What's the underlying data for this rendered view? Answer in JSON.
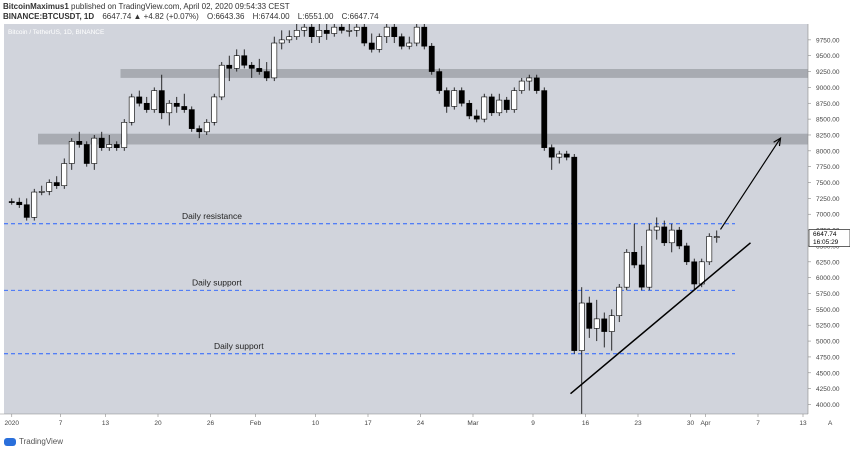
{
  "header": {
    "author": "BitcoinMaximus1",
    "published": "published on TradingView.com, April 02, 2020 09:54:33 CEST",
    "symbol": "BINANCE:BTCUSDT, 1D",
    "change": "6647.74  ▲ +4.82 (+0.07%)",
    "o_label": "O:",
    "o_val": "6643.36",
    "h_label": "H:",
    "h_val": "6744.00",
    "l_label": "L:",
    "l_val": "6551.00",
    "c_label": "C:",
    "c_val": "6647.74"
  },
  "chart_title": "Bitcoin / TetherUS, 1D, BINANCE",
  "footer": {
    "brand": "TradingView"
  },
  "colors": {
    "bg": "#d1d4dc",
    "bull": "#ffffff",
    "bear": "#000000",
    "zone": "#a3a6ad",
    "dash": "#2962ff",
    "price_box": "#ffffff"
  },
  "chart_data": {
    "type": "candlestick",
    "price_axis": {
      "ticks": [
        4000,
        4250,
        4500,
        4750,
        5000,
        5250,
        5500,
        5750,
        6000,
        6250,
        6500,
        6750,
        7000,
        7250,
        7500,
        7750,
        8000,
        8250,
        8500,
        8750,
        9000,
        9250,
        9500,
        9750
      ],
      "tick_labels": [
        "4000.00",
        "4250.00",
        "4500.00",
        "4750.00",
        "5000.00",
        "5250.00",
        "5500.00",
        "5750.00",
        "6000.00",
        "6250.00",
        "6500.00",
        "6750.00",
        "7000.00",
        "7250.00",
        "7500.00",
        "7750.00",
        "8000.00",
        "8250.00",
        "8500.00",
        "8750.00",
        "9000.00",
        "9250.00",
        "9500.00",
        "9750.00"
      ],
      "range": [
        3850,
        10000
      ]
    },
    "time_axis": {
      "labels": [
        "2020",
        "7",
        "13",
        "20",
        "26",
        "Feb",
        "10",
        "17",
        "24",
        "Mar",
        "9",
        "16",
        "23",
        "30",
        "Apr",
        "7",
        "13"
      ],
      "label_index": [
        0,
        6.5,
        12.5,
        19.5,
        26.5,
        32.5,
        40.5,
        47.5,
        54.5,
        61.5,
        69.5,
        76.5,
        83.5,
        90.5,
        92.5,
        99.5,
        105.5
      ],
      "scale_label": "A"
    },
    "current_price": {
      "value": 6647.74,
      "label": "6647.74",
      "countdown": "16:05:29"
    },
    "candles": [
      [
        7200,
        7250,
        7150,
        7190
      ],
      [
        7190,
        7260,
        7100,
        7150
      ],
      [
        7150,
        7250,
        6900,
        6950
      ],
      [
        6950,
        7400,
        6900,
        7350
      ],
      [
        7350,
        7450,
        7300,
        7360
      ],
      [
        7360,
        7550,
        7300,
        7500
      ],
      [
        7500,
        7600,
        7400,
        7450
      ],
      [
        7450,
        7880,
        7400,
        7800
      ],
      [
        7800,
        8200,
        7700,
        8150
      ],
      [
        8150,
        8300,
        8050,
        8100
      ],
      [
        8100,
        8150,
        7750,
        7800
      ],
      [
        7800,
        8250,
        7700,
        8200
      ],
      [
        8200,
        8300,
        8000,
        8050
      ],
      [
        8050,
        8250,
        8000,
        8100
      ],
      [
        8100,
        8150,
        8000,
        8050
      ],
      [
        8050,
        8500,
        8000,
        8450
      ],
      [
        8450,
        8900,
        8400,
        8850
      ],
      [
        8850,
        8950,
        8700,
        8750
      ],
      [
        8750,
        8850,
        8600,
        8650
      ],
      [
        8650,
        9000,
        8600,
        8950
      ],
      [
        8950,
        9200,
        8500,
        8600
      ],
      [
        8600,
        8800,
        8400,
        8750
      ],
      [
        8750,
        8850,
        8600,
        8700
      ],
      [
        8700,
        8900,
        8600,
        8650
      ],
      [
        8650,
        8700,
        8300,
        8350
      ],
      [
        8350,
        8400,
        8200,
        8300
      ],
      [
        8300,
        8500,
        8250,
        8450
      ],
      [
        8450,
        8900,
        8400,
        8850
      ],
      [
        8850,
        9400,
        8800,
        9350
      ],
      [
        9350,
        9500,
        9100,
        9300
      ],
      [
        9300,
        9600,
        9250,
        9500
      ],
      [
        9500,
        9600,
        9300,
        9350
      ],
      [
        9350,
        9400,
        9150,
        9300
      ],
      [
        9300,
        9450,
        9200,
        9250
      ],
      [
        9250,
        9400,
        9100,
        9150
      ],
      [
        9150,
        9800,
        9100,
        9700
      ],
      [
        9700,
        9900,
        9600,
        9750
      ],
      [
        9750,
        9900,
        9700,
        9800
      ],
      [
        9800,
        10000,
        9750,
        9900
      ],
      [
        9900,
        10000,
        9800,
        9950
      ],
      [
        9950,
        10000,
        9700,
        9800
      ],
      [
        9800,
        10000,
        9700,
        9900
      ],
      [
        9900,
        10000,
        9750,
        9850
      ],
      [
        9850,
        10000,
        9800,
        9950
      ],
      [
        9950,
        10000,
        9850,
        9900
      ],
      [
        9900,
        10000,
        9800,
        9900
      ],
      [
        9900,
        10000,
        9800,
        9950
      ],
      [
        9950,
        10000,
        9650,
        9700
      ],
      [
        9700,
        9850,
        9550,
        9600
      ],
      [
        9600,
        9850,
        9550,
        9800
      ],
      [
        9800,
        10000,
        9700,
        9950
      ],
      [
        9950,
        10000,
        9700,
        9800
      ],
      [
        9800,
        9850,
        9600,
        9650
      ],
      [
        9650,
        9800,
        9600,
        9700
      ],
      [
        9700,
        10000,
        9650,
        9950
      ],
      [
        9950,
        10000,
        9600,
        9650
      ],
      [
        9650,
        9700,
        9200,
        9250
      ],
      [
        9250,
        9300,
        8900,
        8950
      ],
      [
        8950,
        9000,
        8600,
        8700
      ],
      [
        8700,
        9000,
        8650,
        8950
      ],
      [
        8950,
        9000,
        8700,
        8750
      ],
      [
        8750,
        8800,
        8500,
        8550
      ],
      [
        8550,
        8650,
        8450,
        8500
      ],
      [
        8500,
        8900,
        8450,
        8850
      ],
      [
        8850,
        8900,
        8550,
        8600
      ],
      [
        8600,
        8900,
        8550,
        8800
      ],
      [
        8800,
        8850,
        8600,
        8650
      ],
      [
        8650,
        9000,
        8600,
        8950
      ],
      [
        8950,
        9150,
        8900,
        9100
      ],
      [
        9100,
        9200,
        8950,
        9150
      ],
      [
        9150,
        9200,
        8900,
        8950
      ],
      [
        8950,
        9000,
        8000,
        8050
      ],
      [
        8050,
        8100,
        7700,
        7900
      ],
      [
        7900,
        8000,
        7800,
        7950
      ],
      [
        7950,
        8000,
        7850,
        7900
      ],
      [
        7900,
        7950,
        4800,
        4850
      ],
      [
        4850,
        5850,
        3850,
        5600
      ],
      [
        5600,
        5700,
        5050,
        5200
      ],
      [
        5200,
        5650,
        5000,
        5350
      ],
      [
        5350,
        5450,
        4900,
        5150
      ],
      [
        5150,
        5500,
        4850,
        5400
      ],
      [
        5400,
        5900,
        5300,
        5850
      ],
      [
        5850,
        6450,
        5800,
        6400
      ],
      [
        6400,
        6850,
        6150,
        6200
      ],
      [
        6200,
        6500,
        5800,
        5850
      ],
      [
        5850,
        6850,
        5800,
        6750
      ],
      [
        6750,
        6950,
        6600,
        6800
      ],
      [
        6800,
        6900,
        6500,
        6550
      ],
      [
        6550,
        6850,
        6400,
        6750
      ],
      [
        6750,
        6800,
        6450,
        6500
      ],
      [
        6500,
        6550,
        6200,
        6250
      ],
      [
        6250,
        6300,
        5800,
        5900
      ],
      [
        5900,
        6300,
        5850,
        6250
      ],
      [
        6250,
        6700,
        6200,
        6650
      ],
      [
        6643.36,
        6744,
        6551,
        6647.74
      ]
    ],
    "series": [
      {
        "name": "Daily resistance",
        "value": 6850,
        "style": "dashed"
      },
      {
        "name": "Daily support",
        "value": 5800,
        "style": "dashed"
      },
      {
        "name": "Daily support",
        "value": 4800,
        "style": "dashed"
      }
    ],
    "zones": [
      {
        "from": 9150,
        "to": 9290,
        "start_index": 15
      },
      {
        "from": 8100,
        "to": 8270,
        "start_index": 4
      }
    ],
    "trendline": {
      "x1": 74.5,
      "y1": 4170,
      "x2": 98.5,
      "y2": 6550
    },
    "arrow": {
      "x1": 94.5,
      "y1": 6760,
      "x2": 102.5,
      "y2": 8200
    }
  }
}
